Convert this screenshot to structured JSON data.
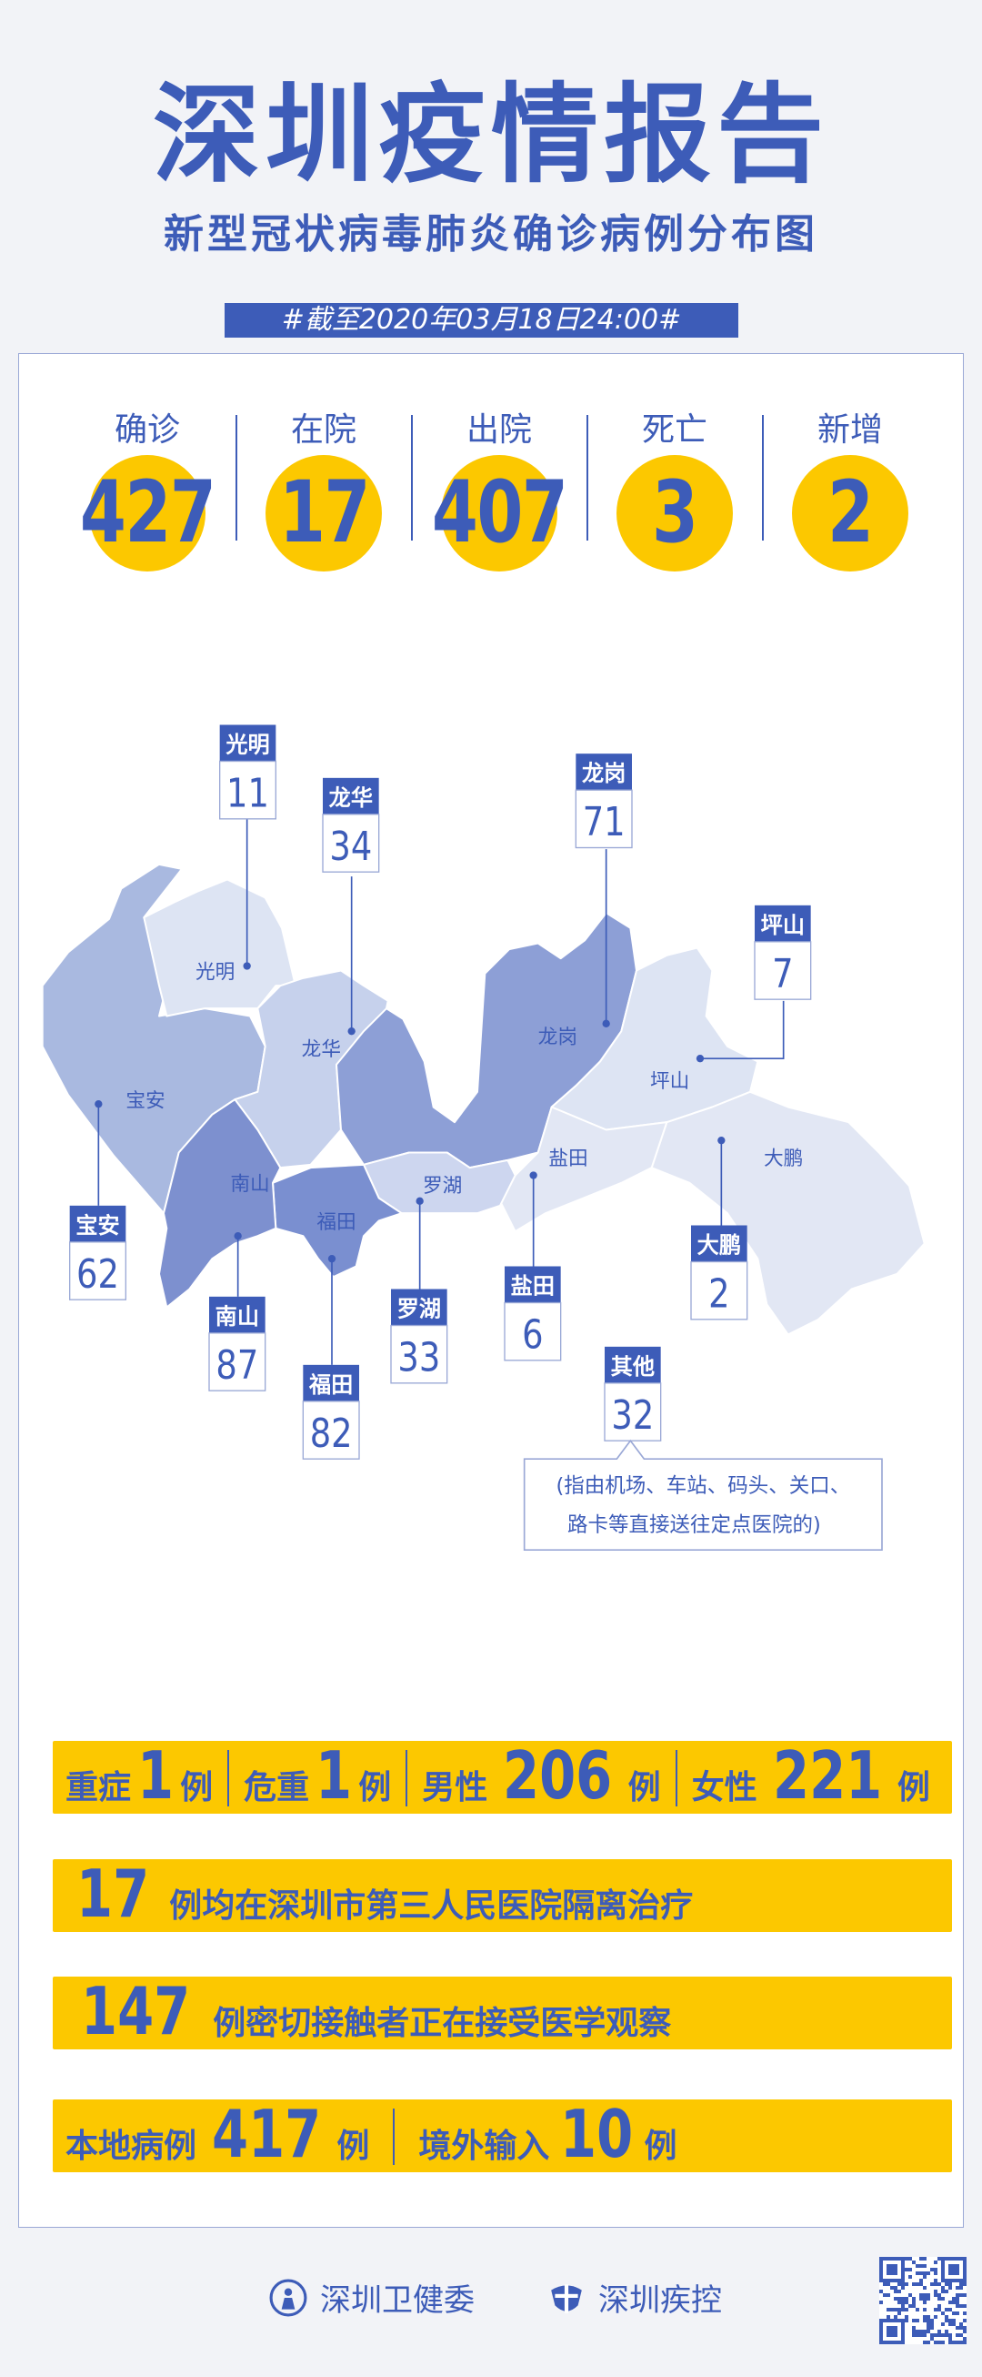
{
  "header": {
    "title": "深圳疫情报告",
    "subtitle": "新型冠状病毒肺炎确诊病例分布图",
    "date": "#截至2020年03月18日24:00#"
  },
  "stats": [
    {
      "label": "确诊",
      "value": "427"
    },
    {
      "label": "在院",
      "value": "17"
    },
    {
      "label": "出院",
      "value": "407"
    },
    {
      "label": "死亡",
      "value": "3"
    },
    {
      "label": "新增",
      "value": "2"
    }
  ],
  "map": {
    "districts": [
      {
        "name": "光明",
        "value": "11"
      },
      {
        "name": "龙华",
        "value": "34"
      },
      {
        "name": "龙岗",
        "value": "71"
      },
      {
        "name": "坪山",
        "value": "7"
      },
      {
        "name": "宝安",
        "value": "62"
      },
      {
        "name": "南山",
        "value": "87"
      },
      {
        "name": "福田",
        "value": "82"
      },
      {
        "name": "罗湖",
        "value": "33"
      },
      {
        "name": "盐田",
        "value": "6"
      },
      {
        "name": "大鹏",
        "value": "2"
      }
    ],
    "other": {
      "name": "其他",
      "value": "32",
      "note_line1": "(指由机场、车站、码头、关口、",
      "note_line2": "路卡等直接送往定点医院的)"
    }
  },
  "bars": {
    "severity": {
      "severe_label": "重症",
      "severe": "1",
      "critical_label": "危重",
      "critical": "1",
      "male_label": "男性",
      "male": "206",
      "female_label": "女性",
      "female": "221",
      "unit": "例"
    },
    "hospital": {
      "count": "17",
      "text": "例均在深圳市第三人民医院隔离治疗"
    },
    "contacts": {
      "count": "147",
      "text": "例密切接触者正在接受医学观察"
    },
    "origin": {
      "local_label": "本地病例",
      "local": "417",
      "imported_label": "境外输入",
      "imported": "10",
      "unit": "例"
    }
  },
  "footer": {
    "org1": "深圳卫健委",
    "org2": "深圳疾控"
  },
  "colors": {
    "blue": "#3d5cb8",
    "yellow": "#fcc800",
    "background": "#f2f3f7"
  }
}
